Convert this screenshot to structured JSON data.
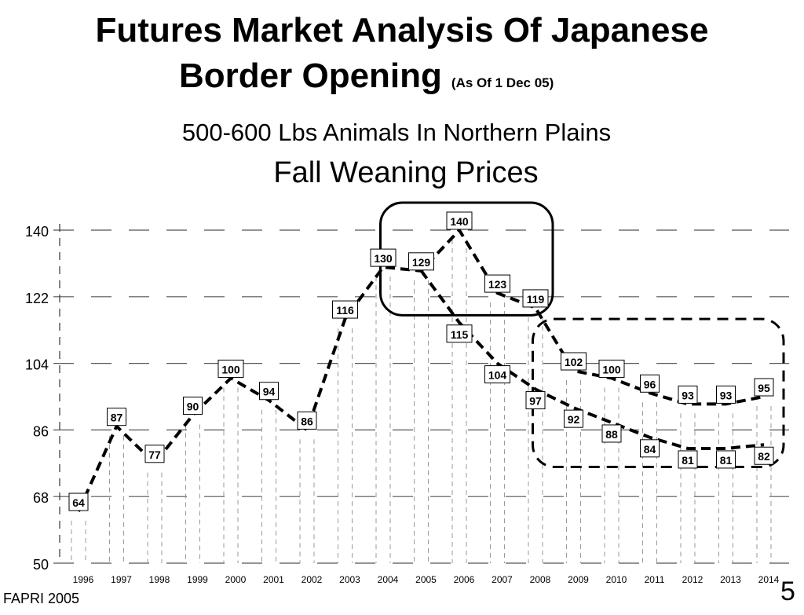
{
  "header": {
    "title_line1": "Futures Market Analysis Of Japanese",
    "title_line2": "Border Opening",
    "as_of": "(As Of 1 Dec 05)",
    "subtitle_line1": "500-600 Lbs Animals In Northern Plains",
    "subtitle_line2": "Fall Weaning Prices"
  },
  "footer": {
    "source": "FAPRI 2005",
    "page_number": "5"
  },
  "chart_data": {
    "type": "line",
    "title": "Fall Weaning Prices",
    "subtitle": "500-600 Lbs Animals In Northern Plains",
    "categories": [
      "1996",
      "1997",
      "1998",
      "1999",
      "2000",
      "2001",
      "2002",
      "2003",
      "2004",
      "2005",
      "2006",
      "2007",
      "2008",
      "2009",
      "2010",
      "2011",
      "2012",
      "2013",
      "2014"
    ],
    "ylim": [
      50,
      140
    ],
    "yticks": [
      50,
      68,
      86,
      104,
      122,
      140
    ],
    "grid": true,
    "series": [
      {
        "values": [
          64,
          87,
          77,
          90,
          100,
          94,
          86,
          116,
          130,
          129,
          140,
          123,
          119,
          102,
          100,
          96,
          93,
          93,
          95
        ],
        "labels": [
          "64",
          "87",
          "77",
          "90",
          "100",
          "94",
          "86",
          "116",
          "130",
          "129",
          "140",
          "123",
          "119",
          "102",
          "100",
          "96",
          "93",
          "93",
          "95"
        ],
        "label_position": "above"
      },
      {
        "values": [
          null,
          null,
          null,
          null,
          null,
          null,
          null,
          null,
          null,
          129,
          115,
          104,
          97,
          92,
          88,
          84,
          81,
          81,
          82
        ],
        "labels": [
          "",
          "",
          "",
          "",
          "",
          "",
          "",
          "",
          "",
          "",
          "115",
          "104",
          "97",
          "92",
          "88",
          "84",
          "81",
          "81",
          "82"
        ],
        "label_position": "below"
      }
    ],
    "annotations": [
      {
        "shape": "rounded-rectangle",
        "style": "solid",
        "x_range": [
          "2005",
          "2008"
        ],
        "y_range": [
          117,
          140
        ]
      },
      {
        "shape": "rounded-rectangle",
        "style": "dashed",
        "x_range": [
          "2009",
          "2014"
        ],
        "y_range": [
          76,
          116
        ]
      }
    ]
  }
}
